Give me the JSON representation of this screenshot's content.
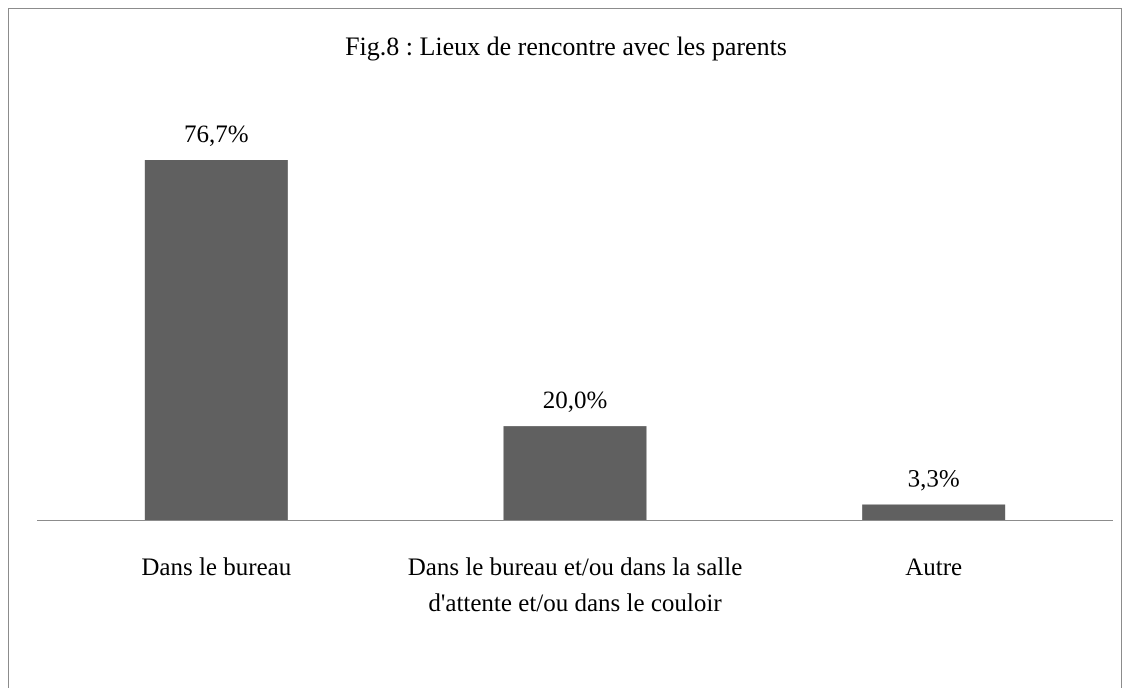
{
  "chart_data": {
    "type": "bar",
    "title": "Fig.8 : Lieux de rencontre avec les parents",
    "categories": [
      "Dans le bureau",
      "Dans le bureau et/ou dans la salle d'attente et/ou dans le couloir",
      "Autre"
    ],
    "values": [
      76.7,
      20.0,
      3.3
    ],
    "value_labels": [
      "76,7%",
      "20,0%",
      "3,3%"
    ],
    "color": "#606060"
  }
}
